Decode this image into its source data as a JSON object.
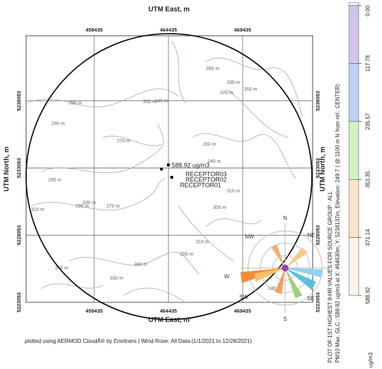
{
  "map": {
    "x_title": "UTM East, m",
    "y_title": "UTM North, m",
    "xlim": [
      454850,
      474150
    ],
    "ylim": [
      5223053,
      5242900
    ],
    "x_ticks": [
      459435,
      464435,
      469435
    ],
    "y_ticks": [
      5238053,
      5233053,
      5228053,
      5223053
    ],
    "max_label": "588.92 ug/m3",
    "receptors": [
      "RECEPTOR01",
      "RECEPTOR02",
      "RECEPTOR03"
    ],
    "contour_labels": [
      "290 m",
      "270 m",
      "310 m",
      "330 m",
      "290 m",
      "320 m",
      "270 m",
      "280 m",
      "250 m",
      "330 m",
      "310 m",
      "300 m",
      "280 m",
      "330 m",
      "290 m",
      "260 m",
      "280 m",
      "320 m",
      "310 m",
      "340 m",
      "240 m",
      "230 m",
      "330 m",
      "350 m"
    ],
    "wind_rose": [
      "N",
      "NE",
      "NW",
      "W",
      "SW",
      "SE",
      "S"
    ]
  },
  "legend": {
    "ticks": [
      {
        "value": 0,
        "label": "0.00"
      },
      117.78,
      235.57,
      353.35,
      471.14,
      588.92
    ],
    "unit": "ug/m3",
    "colors": [
      "#ffffff",
      "#d2c4ea",
      "#c2d0f6",
      "#d2f2c2",
      "#fbe3cc",
      "#fdf2e8"
    ]
  },
  "plot_title": "PLOT OF 1ST HIGHEST 8-HR VALUES FOR SOURCE GROUP : ALL",
  "plot_subtitle": "PM10 Max. GLC : 588.92 ug/m3 at X: 464630m, Y: 5234137m, Elevation: 249.7 ( @ 1100 m N from ref.: CENTER)",
  "footer": "plotted using AERMOD CloudÂ® by Envitrans | Wind Rose: All Data (1/1/2021 to 12/28/2021)"
}
